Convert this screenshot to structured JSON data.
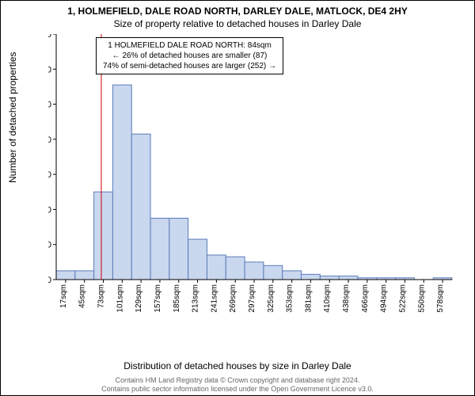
{
  "title_line1": "1, HOLMEFIELD, DALE ROAD NORTH, DARLEY DALE, MATLOCK, DE4 2HY",
  "title_line2": "Size of property relative to detached houses in Darley Dale",
  "annotation": {
    "line1": "1 HOLMEFIELD DALE ROAD NORTH: 84sqm",
    "line2": "← 26% of detached houses are smaller (87)",
    "line3": "74% of semi-detached houses are larger (252) →"
  },
  "y_axis": {
    "label": "Number of detached properties",
    "min": 0,
    "max": 140,
    "tick_step": 20,
    "ticks": [
      0,
      20,
      40,
      60,
      80,
      100,
      120,
      140
    ]
  },
  "x_axis": {
    "label": "Distribution of detached houses by size in Darley Dale",
    "tick_labels": [
      "17sqm",
      "45sqm",
      "73sqm",
      "101sqm",
      "129sqm",
      "157sqm",
      "185sqm",
      "213sqm",
      "241sqm",
      "269sqm",
      "297sqm",
      "325sqm",
      "353sqm",
      "381sqm",
      "410sqm",
      "438sqm",
      "466sqm",
      "494sqm",
      "522sqm",
      "550sqm",
      "578sqm"
    ]
  },
  "histogram": {
    "type": "histogram",
    "bar_color": "#c9d7ef",
    "bar_border_color": "#5b7bb8",
    "bar_border_width": 1,
    "values": [
      5,
      5,
      50,
      111,
      83,
      35,
      35,
      23,
      14,
      13,
      10,
      8,
      5,
      3,
      2,
      2,
      1,
      1,
      1,
      0,
      1
    ]
  },
  "marker_line": {
    "value_sqm": 84,
    "color": "#cc0000",
    "width": 1
  },
  "plot": {
    "background_color": "#ffffff",
    "axis_color": "#000000",
    "tick_font_size": 10
  },
  "attribution": {
    "line1": "Contains HM Land Registry data © Crown copyright and database right 2024.",
    "line2": "Contains public sector information licensed under the Open Government Licence v3.0."
  }
}
